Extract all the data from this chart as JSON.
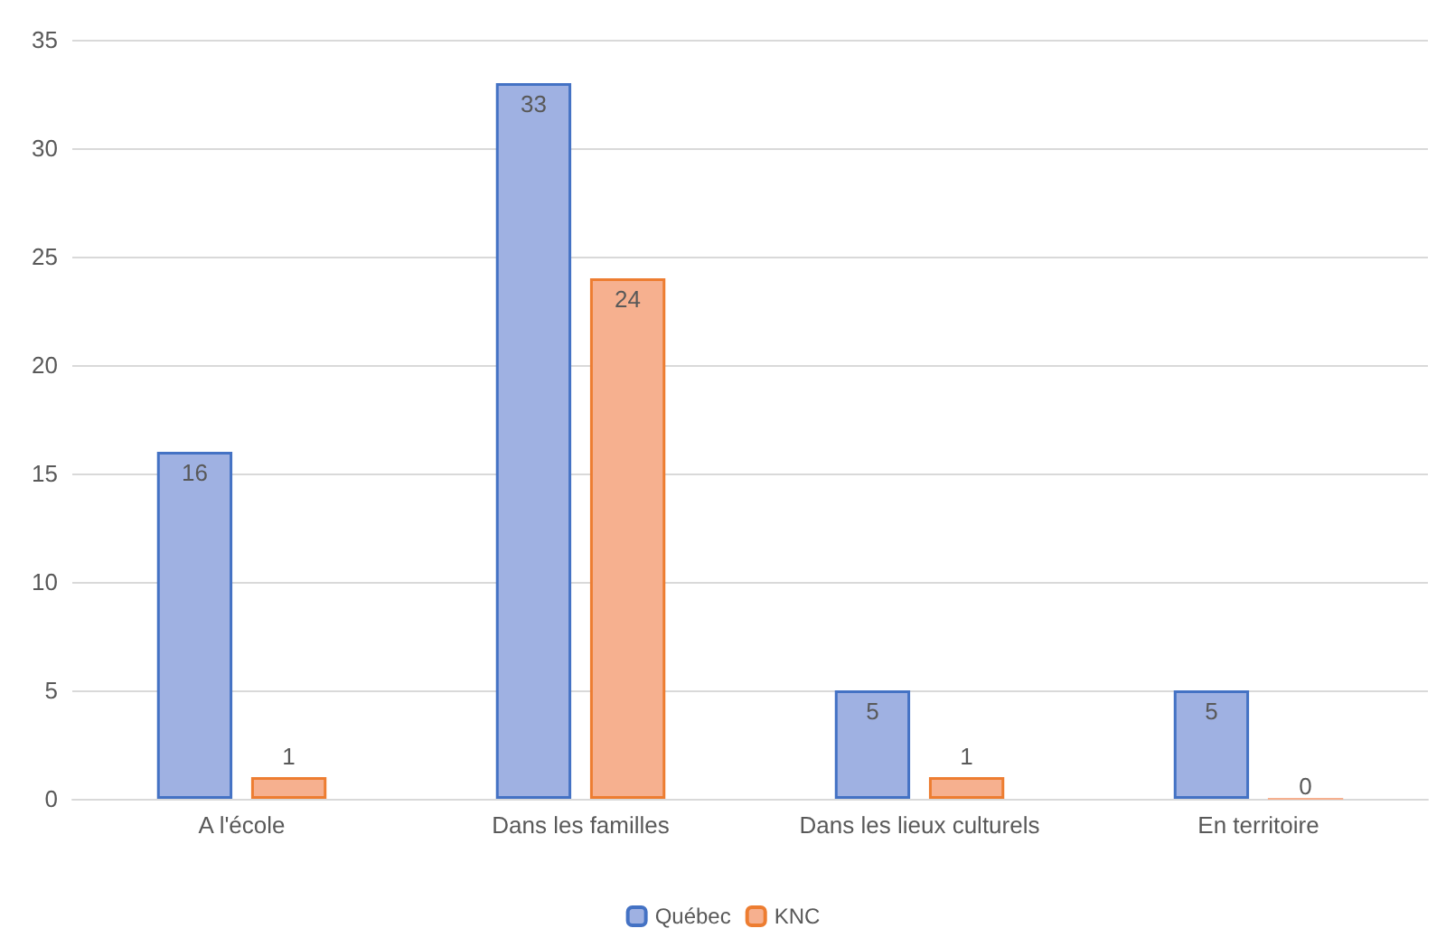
{
  "chart_data": {
    "type": "bar",
    "categories": [
      "A l'école",
      "Dans les familles",
      "Dans les lieux culturels",
      "En territoire"
    ],
    "series": [
      {
        "name": "Québec",
        "color": "#9fb1e2",
        "values": [
          16,
          33,
          5,
          5
        ]
      },
      {
        "name": "KNC",
        "color": "#f6b08f",
        "values": [
          1,
          24,
          1,
          0
        ]
      }
    ],
    "ylim": [
      0,
      35
    ],
    "yticks": [
      0,
      5,
      10,
      15,
      20,
      25,
      30,
      35
    ],
    "grid": "y",
    "legend": "bottom",
    "data_labels": true
  }
}
